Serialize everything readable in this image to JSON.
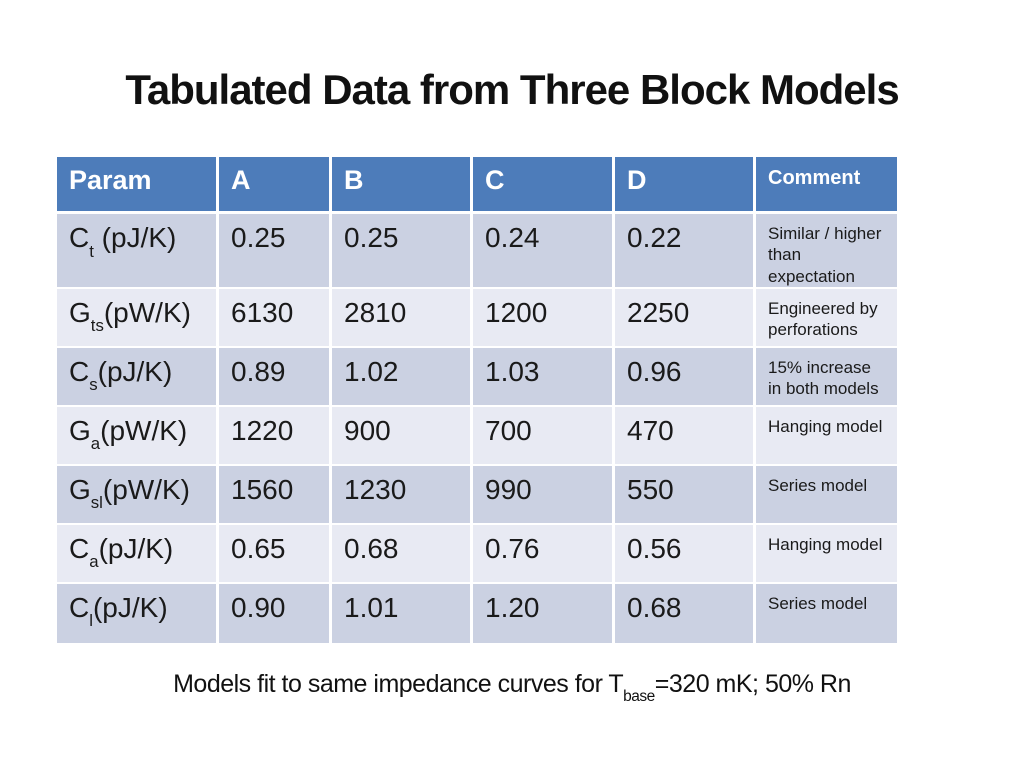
{
  "slide": {
    "title": "Tabulated Data from Three Block Models",
    "footer": {
      "prefix": "Models fit to same impedance curves for T",
      "sub": "base",
      "suffix": "=320 mK; 50% Rn"
    }
  },
  "table": {
    "headers": [
      "Param",
      "A",
      "B",
      "C",
      "D",
      "Comment"
    ],
    "rows": [
      {
        "param_base": "C",
        "param_sub": "t",
        "param_rest": " (pJ/K)",
        "a": "0.25",
        "b": "0.25",
        "c": "0.24",
        "d": "0.22",
        "comment": "Similar / higher than expectation"
      },
      {
        "param_base": "G",
        "param_sub": "ts",
        "param_rest": "(pW/K)",
        "a": "6130",
        "b": "2810",
        "c": "1200",
        "d": "2250",
        "comment": "Engineered by perforations"
      },
      {
        "param_base": "C",
        "param_sub": "s",
        "param_rest": "(pJ/K)",
        "a": "0.89",
        "b": "1.02",
        "c": "1.03",
        "d": "0.96",
        "comment": "15% increase in both models"
      },
      {
        "param_base": "G",
        "param_sub": "a",
        "param_rest": "(pW/K)",
        "a": "1220",
        "b": "900",
        "c": "700",
        "d": "470",
        "comment": "Hanging model"
      },
      {
        "param_base": "G",
        "param_sub": "sl",
        "param_rest": "(pW/K)",
        "a": "1560",
        "b": "1230",
        "c": "990",
        "d": "550",
        "comment": "Series model"
      },
      {
        "param_base": "C",
        "param_sub": "a",
        "param_rest": "(pJ/K)",
        "a": "0.65",
        "b": "0.68",
        "c": "0.76",
        "d": "0.56",
        "comment": "Hanging model"
      },
      {
        "param_base": "C",
        "param_sub": "l",
        "param_rest": "(pJ/K)",
        "a": "0.90",
        "b": "1.01",
        "c": "1.20",
        "d": "0.68",
        "comment": "Series model"
      }
    ]
  },
  "colors": {
    "header_bg": "#4d7cba",
    "header_text": "#ffffff",
    "row_dark": "#cbd1e2",
    "row_light": "#e8eaf3",
    "body_text": "#1a1a1a"
  }
}
